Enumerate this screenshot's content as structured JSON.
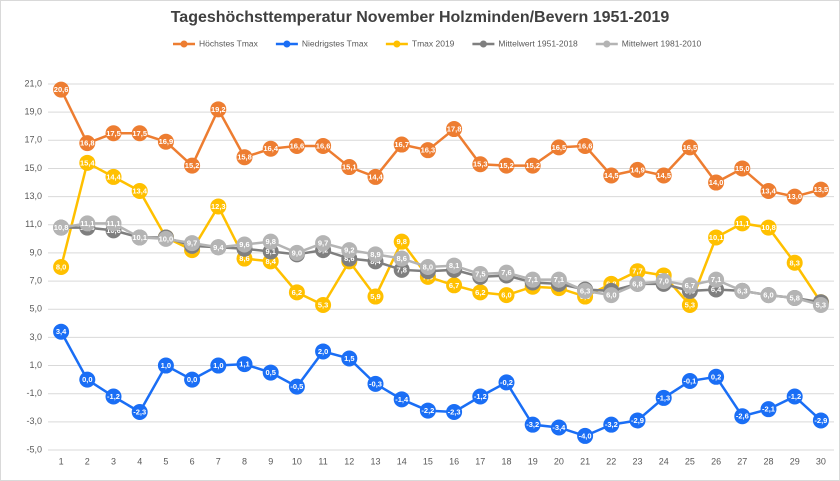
{
  "chart_data": {
    "type": "line",
    "title": "Tageshöchsttemperatur November Holzminden/Bevern 1951-2019",
    "categories": [
      1,
      2,
      3,
      4,
      5,
      6,
      7,
      8,
      9,
      10,
      11,
      12,
      13,
      14,
      15,
      16,
      17,
      18,
      19,
      20,
      21,
      22,
      23,
      24,
      25,
      26,
      27,
      28,
      29,
      30
    ],
    "ylim": [
      -5,
      21
    ],
    "yticks": [
      {
        "value": -5,
        "label": "-5,0"
      },
      {
        "value": -3,
        "label": "-3,0"
      },
      {
        "value": -1,
        "label": "-1,0"
      },
      {
        "value": 1,
        "label": "1,0"
      },
      {
        "value": 3,
        "label": "3,0"
      },
      {
        "value": 5,
        "label": "5,0"
      },
      {
        "value": 7,
        "label": "7,0"
      },
      {
        "value": 9,
        "label": "9,0"
      },
      {
        "value": 11,
        "label": "11,0"
      },
      {
        "value": 13,
        "label": "13,0"
      },
      {
        "value": 15,
        "label": "15,0"
      },
      {
        "value": 17,
        "label": "17,0"
      },
      {
        "value": 19,
        "label": "19,0"
      },
      {
        "value": 21,
        "label": "21,0"
      }
    ],
    "grid": true,
    "series": [
      {
        "name": "Höchstes Tmax",
        "color": "#ed7d31",
        "values": [
          20.6,
          16.8,
          17.5,
          17.5,
          16.9,
          15.2,
          19.2,
          15.8,
          16.4,
          16.6,
          16.6,
          15.1,
          14.4,
          16.7,
          16.3,
          17.8,
          15.3,
          15.2,
          15.2,
          16.5,
          16.6,
          14.5,
          14.9,
          14.5,
          16.5,
          14.0,
          15.0,
          13.4,
          13.0,
          13.5
        ],
        "value_labels": [
          "20,6",
          "16,8",
          "17,5",
          "17,5",
          "16,9",
          "15,2",
          "19,2",
          "15,8",
          "16,4",
          "16,6",
          "16,6",
          "15,1",
          "14,4",
          "16,7",
          "16,3",
          "17,8",
          "15,3",
          "15,2",
          "15,2",
          "16,5",
          "16,6",
          "14,5",
          "14,9",
          "14,5",
          "16,5",
          "14,0",
          "15,0",
          "13,4",
          "13,0",
          "13,5"
        ]
      },
      {
        "name": "Niedrigstes Tmax",
        "color": "#1a6ef5",
        "values": [
          3.4,
          0.0,
          -1.2,
          -2.3,
          1.0,
          0.0,
          1.0,
          1.1,
          0.5,
          -0.5,
          2.0,
          1.5,
          -0.3,
          -1.4,
          -2.2,
          -2.3,
          -1.2,
          -0.2,
          -3.2,
          -3.4,
          -4.0,
          -3.2,
          -2.9,
          -1.3,
          -0.1,
          0.2,
          -2.6,
          -2.1,
          -1.2,
          -2.9
        ],
        "value_labels": [
          "3,4",
          "0,0",
          "-1,2",
          "-2,3",
          "1,0",
          "0,0",
          "1,0",
          "1,1",
          "0,5",
          "-0,5",
          "2,0",
          "1,5",
          "-0,3",
          "-1,4",
          "-2,2",
          "-2,3",
          "-1,2",
          "-0,2",
          "-3,2",
          "-3,4",
          "-4,0",
          "-3,2",
          "-2,9",
          "-1,3",
          "-0,1",
          "0,2",
          "-2,6",
          "-2,1",
          "-1,2",
          "-2,9"
        ]
      },
      {
        "name": "Tmax 2019",
        "color": "#ffc000",
        "values": [
          8.0,
          15.4,
          14.4,
          13.4,
          10.1,
          9.2,
          12.3,
          8.6,
          8.4,
          6.2,
          5.3,
          8.4,
          5.9,
          9.8,
          7.3,
          6.7,
          6.2,
          6.0,
          6.6,
          6.5,
          5.9,
          6.8,
          7.7,
          7.4,
          5.3,
          10.1,
          11.1,
          10.8,
          8.3,
          5.5
        ],
        "value_labels": [
          "8,0",
          "15,4",
          "14,4",
          "13,4",
          "10,1",
          "9,2",
          "12,3",
          "8,6",
          "8,4",
          "6,2",
          "5,3",
          "8,4",
          "5,9",
          "9,8",
          "7,3",
          "6,7",
          "6,2",
          "6,0",
          "6,6",
          "6,5",
          "5,9",
          "6,8",
          "7,7",
          "7,4",
          "5,3",
          "10,1",
          "11,1",
          "10,8",
          "8,3",
          "5,5"
        ]
      },
      {
        "name": "Mittelwert 1951-2018",
        "color": "#7f7f7f",
        "values": [
          10.8,
          10.8,
          10.6,
          10.1,
          10.1,
          9.5,
          9.4,
          9.3,
          9.1,
          8.9,
          9.2,
          8.6,
          8.4,
          7.8,
          7.7,
          7.8,
          7.3,
          7.4,
          6.9,
          6.8,
          6.4,
          6.3,
          6.8,
          6.8,
          6.3,
          6.4,
          6.3,
          6.0,
          5.8,
          5.5
        ],
        "value_labels": [
          "10,8",
          "10,8",
          "10,6",
          "10,1",
          "10,1",
          "9,5",
          "9,4",
          "9,3",
          "9,1",
          "8,9",
          "9,2",
          "8,6",
          "8,4",
          "7,8",
          "7,7",
          "7,8",
          "7,3",
          "7,4",
          "6,9",
          "6,8",
          "6,4",
          "6,3",
          "6,8",
          "6,8",
          "6,3",
          "6,4",
          "6,3",
          "6,0",
          "5,8",
          "5,5"
        ]
      },
      {
        "name": "Mittelwert 1981-2010",
        "color": "#b4b4b4",
        "values": [
          10.8,
          11.1,
          11.1,
          10.1,
          10.0,
          9.7,
          9.4,
          9.6,
          9.8,
          9.0,
          9.7,
          9.2,
          8.9,
          8.6,
          8.0,
          8.1,
          7.5,
          7.6,
          7.1,
          7.1,
          6.3,
          6.0,
          6.8,
          7.0,
          6.7,
          7.1,
          6.3,
          6.0,
          5.8,
          5.3
        ],
        "value_labels": [
          "10,8",
          "11,1",
          "11,1",
          "10,1",
          "10,0",
          "9,7",
          "9,4",
          "9,6",
          "9,8",
          "9,0",
          "9,7",
          "9,2",
          "8,9",
          "8,6",
          "8,0",
          "8,1",
          "7,5",
          "7,6",
          "7,1",
          "7,1",
          "6,3",
          "6,0",
          "6,8",
          "7,0",
          "6,7",
          "7,1",
          "6,3",
          "6,0",
          "5,8",
          "5,3"
        ]
      }
    ]
  }
}
